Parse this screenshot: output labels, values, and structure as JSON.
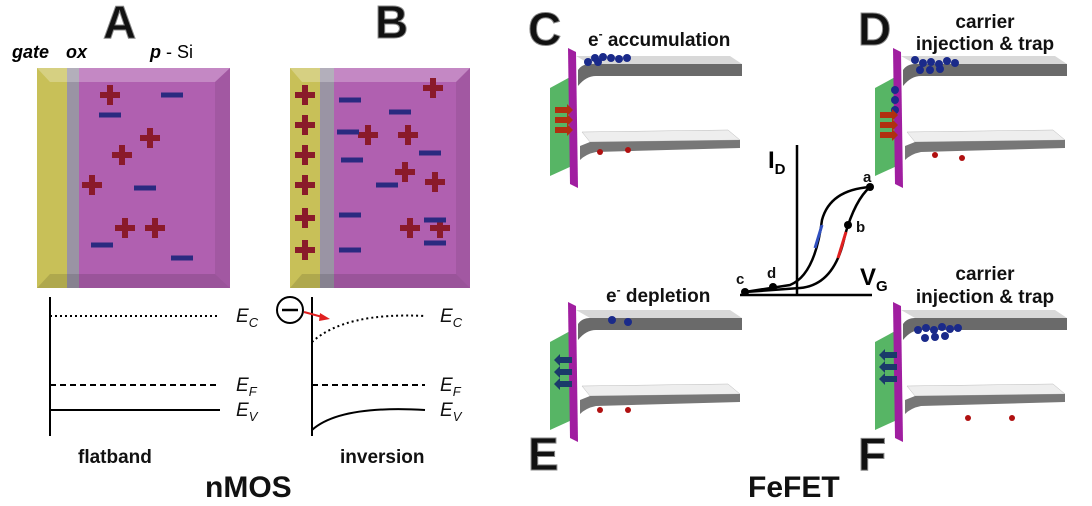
{
  "panels": {
    "A": "A",
    "B": "B",
    "C": "C",
    "D": "D",
    "E": "E",
    "F": "F"
  },
  "nmos": {
    "title": "nMOS",
    "layers": {
      "gate": "gate",
      "ox": "ox",
      "p": "p",
      "si": "- Si"
    },
    "bands": {
      "ec": {
        "symbol": "E",
        "sub": "C"
      },
      "ef": {
        "symbol": "E",
        "sub": "F"
      },
      "ev": {
        "symbol": "E",
        "sub": "V"
      }
    },
    "flatband": "flatband",
    "inversion": "inversion"
  },
  "fefet": {
    "title": "FeFET",
    "c": {
      "e": "e",
      "sup": "-",
      "text": " accumulation"
    },
    "d": [
      "carrier",
      "injection & trap"
    ],
    "e": {
      "e": "e",
      "sup": "-",
      "text": " depletion"
    },
    "f": [
      "carrier",
      "injection & trap"
    ],
    "graph": {
      "y_axis": {
        "symbol": "I",
        "sub": "D"
      },
      "x_axis": {
        "symbol": "V",
        "sub": "G"
      },
      "points": [
        "a",
        "b",
        "c",
        "d"
      ]
    }
  }
}
